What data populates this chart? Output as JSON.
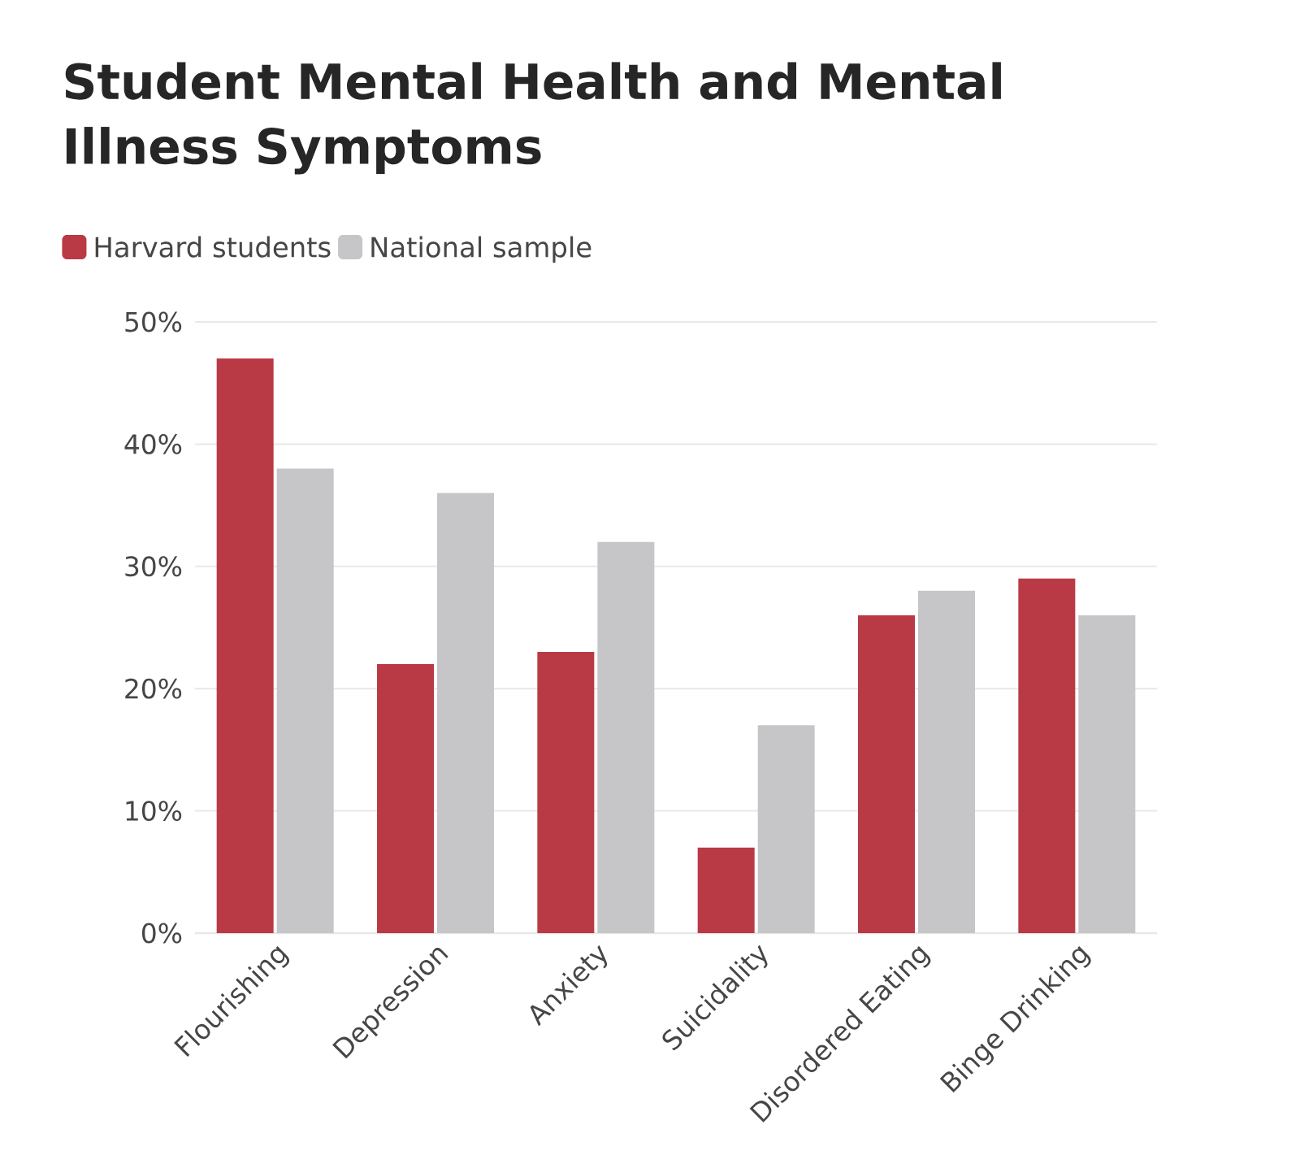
{
  "chart_data": {
    "type": "bar",
    "title": "Student Mental Health and Mental Illness Symptoms",
    "categories": [
      "Flourishing",
      "Depression",
      "Anxiety",
      "Suicidality",
      "Disordered Eating",
      "Binge Drinking"
    ],
    "series": [
      {
        "name": "Harvard students",
        "color": "#b93a45",
        "values": [
          47,
          22,
          23,
          7,
          26,
          29
        ]
      },
      {
        "name": "National sample",
        "color": "#c6c6c8",
        "values": [
          38,
          36,
          32,
          17,
          28,
          26
        ]
      }
    ],
    "ylim": [
      0,
      50
    ],
    "yticks": [
      {
        "value": 0,
        "label": "0%"
      },
      {
        "value": 10,
        "label": "10%"
      },
      {
        "value": 20,
        "label": "20%"
      },
      {
        "value": 30,
        "label": "30%"
      },
      {
        "value": 40,
        "label": "40%"
      },
      {
        "value": 50,
        "label": "50%"
      }
    ],
    "grid": "y",
    "legend": "top left"
  }
}
